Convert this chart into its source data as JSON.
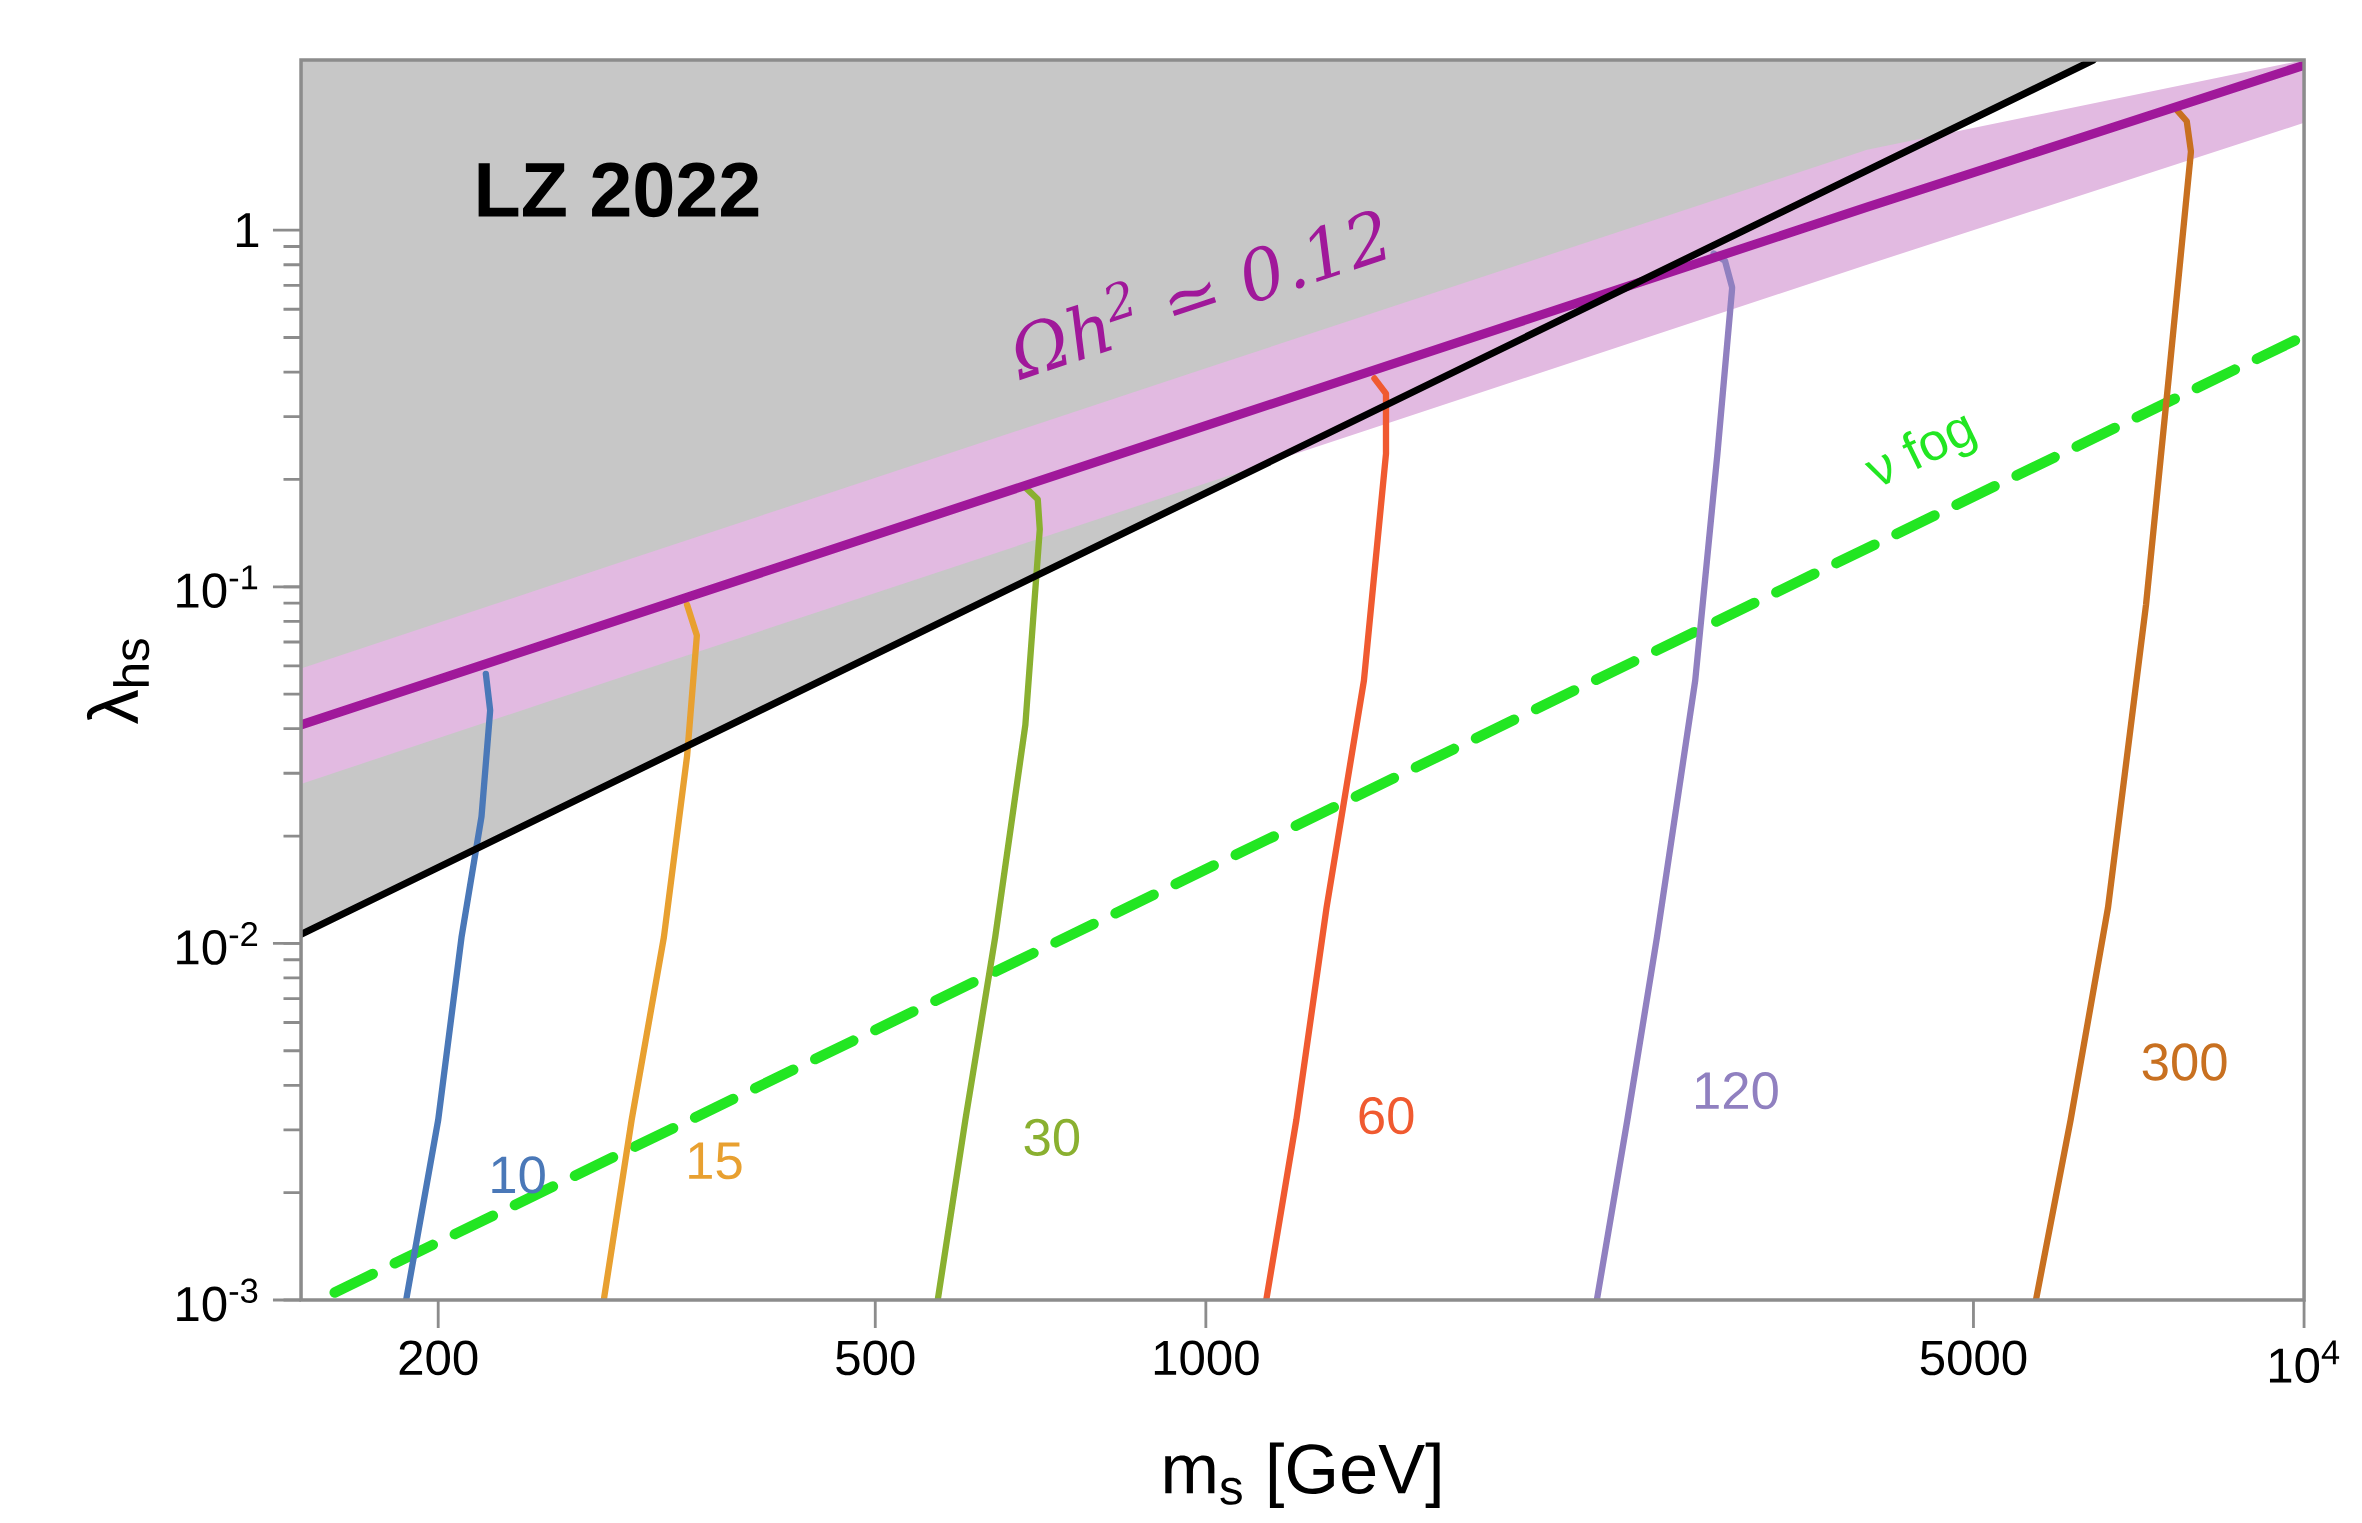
{
  "chart_data": {
    "type": "line",
    "xlabel": "m$_{s}$  [GeV]",
    "ylabel": "λ$_{hs}$",
    "log": "xy",
    "xlim": [
      150,
      10000
    ],
    "ylim": [
      0.001,
      3
    ],
    "xticks": [
      200,
      500,
      1000,
      5000,
      {
        "value": 10000,
        "label": "10$^{4}$"
      }
    ],
    "yticks": [
      {
        "value": 0.001,
        "label": "10$^{-3}$"
      },
      {
        "value": 0.01,
        "label": "10$^{-2}$"
      },
      {
        "value": 0.1,
        "label": "10$^{-1}$"
      },
      1
    ],
    "series": [
      {
        "name": "LZ 2022",
        "color": "#000000",
        "x": [
          150,
          6430
        ],
        "values": [
          0.0106,
          3
        ],
        "lower": [
          0.0106,
          3
        ],
        "upper": [
          3,
          3
        ]
      },
      {
        "name": "Ωh$^{2}$ ≃ 0.12",
        "color": "#a0189a",
        "x": [
          150,
          300,
          1000,
          4000,
          10000
        ],
        "values": [
          0.041,
          0.083,
          0.283,
          1.16,
          2.9
        ],
        "lower": [
          0.028,
          0.057,
          0.195,
          0.8,
          2.0
        ],
        "upper": [
          0.059,
          0.12,
          0.41,
          1.68,
          3
        ]
      },
      {
        "name": "ν fog",
        "color": "#22e622",
        "line_style": "dashed",
        "x": [
          161,
          10000
        ],
        "values": [
          0.00105,
          0.505
        ]
      },
      {
        "name": "10",
        "color": "#4a78b8",
        "x": [
          187,
          200,
          210,
          219,
          223,
          221
        ],
        "values": [
          0.001,
          0.0032,
          0.0104,
          0.0227,
          0.045,
          0.057
        ]
      },
      {
        "name": "15",
        "color": "#e8a030",
        "x": [
          283,
          300,
          321,
          337,
          344,
          337
        ],
        "values": [
          0.001,
          0.0032,
          0.0104,
          0.0335,
          0.073,
          0.089
        ]
      },
      {
        "name": "30",
        "color": "#8ab030",
        "x": [
          570,
          604,
          643,
          685,
          706,
          703,
          685
        ],
        "values": [
          0.001,
          0.0032,
          0.0104,
          0.041,
          0.145,
          0.176,
          0.19
        ]
      },
      {
        "name": "60",
        "color": "#f05a30",
        "x": [
          1135,
          1209,
          1288,
          1393,
          1459,
          1459,
          1424
        ],
        "values": [
          0.001,
          0.0032,
          0.0126,
          0.0546,
          0.236,
          0.348,
          0.384
        ]
      },
      {
        "name": "120",
        "color": "#9080c0",
        "x": [
          2270,
          2420,
          2575,
          2790,
          2923,
          3015,
          2970,
          2900
        ],
        "values": [
          0.001,
          0.0032,
          0.0104,
          0.0546,
          0.236,
          0.69,
          0.82,
          0.86
        ]
      },
      {
        "name": "300",
        "color": "#c87020",
        "x": [
          5700,
          6130,
          6630,
          7180,
          7530,
          7890,
          7820,
          7650
        ],
        "values": [
          0.001,
          0.0032,
          0.0126,
          0.089,
          0.384,
          1.66,
          2.02,
          2.18
        ]
      }
    ]
  }
}
